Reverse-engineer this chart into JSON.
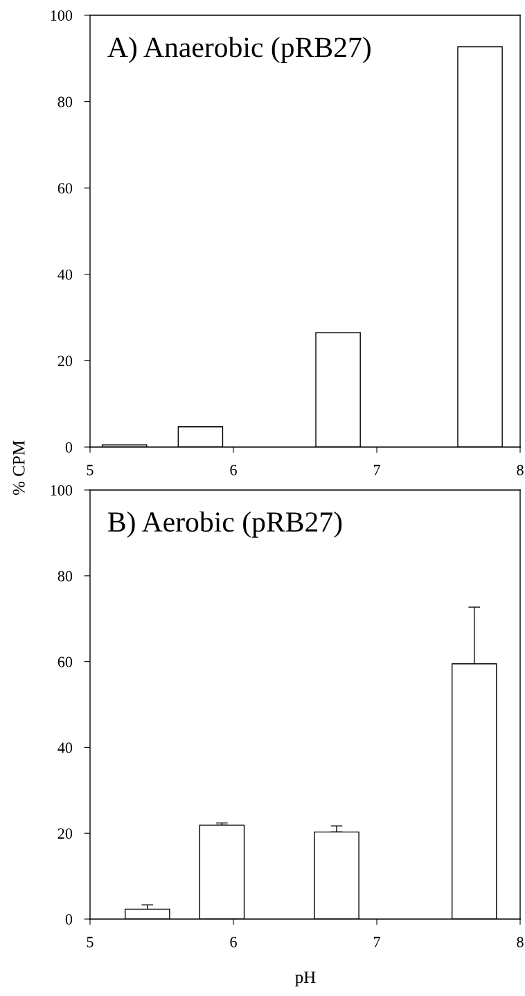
{
  "chart_data": [
    {
      "type": "bar",
      "title": "A) Anaerobic (pRB27)",
      "ylabel": "% CPM",
      "x": [
        5.24,
        5.77,
        6.73,
        7.72
      ],
      "values": [
        0.5,
        4.7,
        26.5,
        92.7
      ],
      "color": "#ffffff",
      "xlim": [
        5,
        8
      ],
      "xticks": [
        5,
        6,
        7,
        8
      ],
      "ylim": [
        0,
        100
      ],
      "yticks": [
        0,
        20,
        40,
        60,
        80,
        100
      ],
      "grid": false,
      "legend": false
    },
    {
      "type": "bar",
      "title": "B) Aerobic (pRB27)",
      "xlabel": "pH",
      "x": [
        5.4,
        5.92,
        6.72,
        7.68
      ],
      "values": [
        2.3,
        21.9,
        20.3,
        59.5
      ],
      "errors": [
        [
          2.3,
          3.3
        ],
        [
          21.9,
          22.4
        ],
        [
          20.3,
          21.7
        ],
        [
          59.5,
          72.7
        ]
      ],
      "color": "#ffffff",
      "xlim": [
        5,
        8
      ],
      "xticks": [
        5,
        6,
        7,
        8
      ],
      "ylim": [
        0,
        100
      ],
      "yticks": [
        0,
        20,
        40,
        60,
        80,
        100
      ],
      "grid": false,
      "legend": false
    }
  ]
}
